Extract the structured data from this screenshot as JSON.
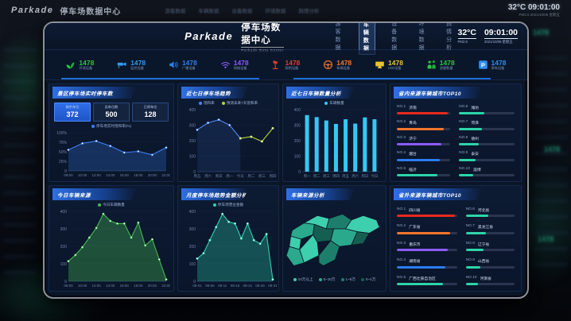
{
  "background": {
    "logo": "Parkade",
    "title": "停车场数据中心",
    "nav": [
      "游客数据",
      "车辆数据",
      "设备数据",
      "环境数据",
      "舆情分析"
    ],
    "clock_line": "32°C 09:01:00",
    "clock_sub": "PM2.5  2021/10/08 星期五",
    "kpi_echo": "1478"
  },
  "header": {
    "logo": "Parkade",
    "title": "停车场数据中心",
    "subtitle": "Parkade Data Center",
    "nav": [
      {
        "label": "游客数据",
        "active": false
      },
      {
        "label": "车辆数据",
        "active": true
      },
      {
        "label": "设备数据",
        "active": false
      },
      {
        "label": "环境数据",
        "active": false
      },
      {
        "label": "舆情分析",
        "active": false
      }
    ],
    "temp": "32°C",
    "pm_label": "PM2.5",
    "time": "09:01:00",
    "date": "2021/10/08 星期五"
  },
  "kpis": [
    {
      "icon": "plant-icon",
      "value": "1478",
      "label": "环境设备",
      "color": "#27c93f"
    },
    {
      "icon": "camera-icon",
      "value": "1478",
      "label": "监控设备",
      "color": "#2f9bf0"
    },
    {
      "icon": "speaker-icon",
      "value": "1478",
      "label": "广播设备",
      "color": "#2f7ef0"
    },
    {
      "icon": "wifi-icon",
      "value": "1478",
      "label": "网络设备",
      "color": "#8b5cf6"
    },
    {
      "icon": "lamp-icon",
      "value": "1478",
      "label": "照明设备",
      "color": "#e83a30"
    },
    {
      "icon": "steering-wheel-icon",
      "value": "1478",
      "label": "车辆设备",
      "color": "#f2742c"
    },
    {
      "icon": "led-screen-icon",
      "value": "1478",
      "label": "LED设备",
      "color": "#e8c431"
    },
    {
      "icon": "people-icon",
      "value": "1478",
      "label": "游客数量",
      "color": "#27c93f"
    },
    {
      "icon": "parking-icon",
      "value": "1478",
      "label": "停车设备",
      "color": "#2f8ef0"
    }
  ],
  "panels": {
    "realtime": {
      "title": "景区停车场实时停车数",
      "stats": [
        {
          "label": "剩余车位",
          "value": "372",
          "highlight": true
        },
        {
          "label": "总车位数",
          "value": "500",
          "highlight": false
        },
        {
          "label": "已停车位",
          "value": "128",
          "highlight": false
        }
      ]
    },
    "trend7": {
      "title": "近七日停车场趋势"
    },
    "count7": {
      "title": "近七日车辆数量分析"
    },
    "city_top10": {
      "title": "省内来源车辆城市TOP10",
      "items": [
        {
          "rank": "NO.1",
          "name": "济南",
          "pct": 96,
          "color": "#e8291c"
        },
        {
          "rank": "NO.2",
          "name": "青岛",
          "pct": 88,
          "color": "#f2742c"
        },
        {
          "rank": "NO.3",
          "name": "济宁",
          "pct": 84,
          "color": "#8b5cf6"
        },
        {
          "rank": "NO.4",
          "name": "烟台",
          "pct": 80,
          "color": "#2b7cf0"
        },
        {
          "rank": "NO.5",
          "name": "临沂",
          "pct": 76,
          "color": "#2dd4a8"
        },
        {
          "rank": "NO.6",
          "name": "潍坊",
          "pct": 46,
          "color": "#2dd4a8"
        },
        {
          "rank": "NO.7",
          "name": "菏泽",
          "pct": 42,
          "color": "#2dd4a8"
        },
        {
          "rank": "NO.8",
          "name": "德州",
          "pct": 36,
          "color": "#2dd4a8"
        },
        {
          "rank": "NO.9",
          "name": "泰安",
          "pct": 30,
          "color": "#2dd4a8"
        },
        {
          "rank": "NO.10",
          "name": "淄博",
          "pct": 25,
          "color": "#2dd4a8"
        }
      ]
    },
    "today": {
      "title": "今日车辆来源"
    },
    "monthly": {
      "title": "月度停车场趋势金额分析"
    },
    "map": {
      "title": "车辆来源分析",
      "legend": [
        {
          "label": "10万以上",
          "color": "#3ecfae"
        },
        {
          "label": "5~10万",
          "color": "#2aa98c"
        },
        {
          "label": "1~5万",
          "color": "#1d7f6b"
        },
        {
          "label": "0~1万",
          "color": "#145f51"
        }
      ]
    },
    "province_top10": {
      "title": "省外来源车辆城市TOP10",
      "items": [
        {
          "rank": "NO.1",
          "name": "四川省",
          "pct": 96,
          "color": "#e8291c"
        },
        {
          "rank": "NO.2",
          "name": "广东省",
          "pct": 88,
          "color": "#f2742c"
        },
        {
          "rank": "NO.3",
          "name": "重庆市",
          "pct": 84,
          "color": "#8b5cf6"
        },
        {
          "rank": "NO.4",
          "name": "湖南省",
          "pct": 80,
          "color": "#2b7cf0"
        },
        {
          "rank": "NO.5",
          "name": "广西壮族自治区",
          "pct": 76,
          "color": "#2dd4a8"
        },
        {
          "rank": "NO.6",
          "name": "河北省",
          "pct": 46,
          "color": "#2dd4a8"
        },
        {
          "rank": "NO.7",
          "name": "黑龙江省",
          "pct": 42,
          "color": "#2dd4a8"
        },
        {
          "rank": "NO.8",
          "name": "辽宁省",
          "pct": 36,
          "color": "#2dd4a8"
        },
        {
          "rank": "NO.9",
          "name": "山西省",
          "pct": 30,
          "color": "#2dd4a8"
        },
        {
          "rank": "NO.10",
          "name": "河南省",
          "pct": 25,
          "color": "#2dd4a8"
        }
      ]
    }
  },
  "chart_data": [
    {
      "id": "saturation",
      "type": "line",
      "title": "景区停车场实时停车数",
      "legend": [
        "停车场实时饱和率(%)"
      ],
      "x": [
        "08:00",
        "10:00",
        "12:00",
        "14:00",
        "16:00",
        "18:00",
        "20:00",
        "22:00"
      ],
      "ylim": [
        0,
        100
      ],
      "yticks": [
        "100%",
        "75%",
        "50%",
        "25%",
        "0"
      ],
      "series": [
        {
          "name": "停车场实时饱和率(%)",
          "color": "#3d7ef5",
          "fill": true,
          "fillOpacity": 0.25,
          "values": [
            55,
            72,
            78,
            65,
            48,
            51,
            42,
            61
          ]
        }
      ]
    },
    {
      "id": "trend7",
      "type": "line",
      "title": "近七日停车场趋势",
      "legend": [
        "饱和率",
        "预测未来7天饱和率"
      ],
      "x": [
        "周五",
        "周六",
        "周日",
        "周一",
        "今天",
        "周二",
        "周三",
        "周四"
      ],
      "ylim": [
        0,
        400
      ],
      "yticks": [
        "400",
        "300",
        "200",
        "100",
        "0"
      ],
      "series": [
        {
          "name": "饱和率",
          "color": "#4f86f7",
          "fill": true,
          "fillOpacity": 0.12,
          "values": [
            270,
            315,
            335,
            300,
            215,
            null,
            null,
            null
          ]
        },
        {
          "name": "预测未来7天饱和率",
          "color": "#b7d437",
          "fill": false,
          "values": [
            null,
            null,
            null,
            null,
            215,
            225,
            195,
            280
          ]
        }
      ]
    },
    {
      "id": "count7",
      "type": "bar",
      "title": "近七日车辆数量分析",
      "legend": [
        "车辆数量"
      ],
      "color": "#35c8f5",
      "x": [
        "周一",
        "周二",
        "周三",
        "周四",
        "周五",
        "周六",
        "周日",
        "今日"
      ],
      "ylim": [
        0,
        400
      ],
      "yticks": [
        "400",
        "300",
        "200",
        "100",
        "0"
      ],
      "values": [
        365,
        352,
        330,
        308,
        338,
        310,
        350,
        338
      ]
    },
    {
      "id": "today",
      "type": "area",
      "title": "今日车辆来源",
      "legend": [
        "今日车辆数量"
      ],
      "x": [
        "08:00",
        "10:00",
        "12:00",
        "14:00",
        "16:00",
        "18:00",
        "20:00",
        "22:00"
      ],
      "ylim": [
        0,
        400
      ],
      "yticks": [
        "400",
        "300",
        "200",
        "100",
        "0"
      ],
      "series": [
        {
          "name": "今日车辆数量",
          "color": "#45b954",
          "fill": true,
          "fillOpacity": 0.35,
          "values": [
            115,
            150,
            195,
            250,
            305,
            385,
            345,
            330,
            330,
            250,
            335,
            205,
            240,
            125,
            10
          ]
        }
      ]
    },
    {
      "id": "monthly",
      "type": "area",
      "title": "月度停车场趋势金额分析",
      "legend": [
        "停车场营业金额"
      ],
      "x": [
        "08-01",
        "08-06",
        "08-11",
        "08-16",
        "08-21",
        "08-26",
        "08-31"
      ],
      "ylim": [
        0,
        400
      ],
      "yticks": [
        "400",
        "300",
        "200",
        "100",
        "0"
      ],
      "series": [
        {
          "name": "停车场营业金额",
          "color": "#2fd3b0",
          "fill": true,
          "fillOpacity": 0.3,
          "values": [
            130,
            160,
            235,
            310,
            385,
            340,
            330,
            245,
            330,
            235,
            215,
            270,
            10
          ]
        }
      ]
    },
    {
      "id": "region_map",
      "type": "heatmap",
      "title": "车辆来源分析",
      "legend": [
        "10万以上",
        "5~10万",
        "1~5万",
        "0~1万"
      ]
    }
  ]
}
